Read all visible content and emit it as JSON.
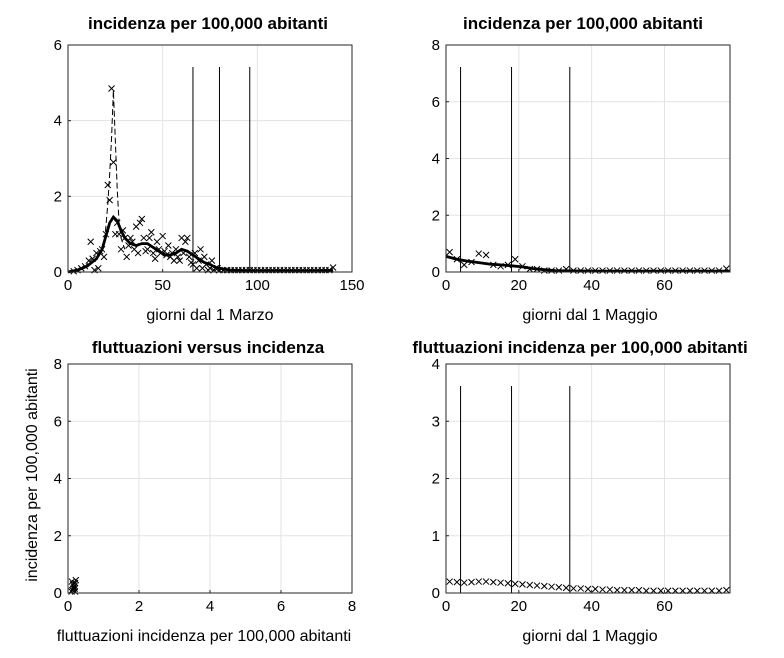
{
  "chart_data": [
    {
      "type": "line",
      "title": "incidenza per 100,000 abitanti",
      "xlabel": "giorni dal 1 Marzo",
      "ylabel": "",
      "xlim": [
        0,
        150
      ],
      "ylim": [
        0,
        6
      ],
      "xticks": [
        0,
        50,
        100,
        150
      ],
      "yticks": [
        0,
        2,
        4,
        6
      ],
      "grid": true,
      "vlines": [
        66,
        80,
        96
      ],
      "series": [
        {
          "style": "marker-x",
          "x": [
            3,
            5,
            7,
            9,
            11,
            12,
            13,
            14,
            15,
            16,
            17,
            18,
            19,
            20,
            21,
            22,
            23,
            24,
            25,
            26,
            27,
            28,
            29,
            30,
            31,
            32,
            33,
            34,
            35,
            36,
            37,
            38,
            39,
            40,
            41,
            42,
            43,
            44,
            45,
            46,
            47,
            48,
            49,
            50,
            51,
            52,
            53,
            54,
            55,
            56,
            57,
            58,
            59,
            60,
            61,
            62,
            63,
            64,
            65,
            66,
            67,
            68,
            69,
            70,
            71,
            72,
            73,
            74,
            75,
            76,
            77,
            78,
            79,
            80,
            82,
            84,
            86,
            88,
            90,
            92,
            94,
            96,
            98,
            100,
            102,
            104,
            106,
            108,
            110,
            112,
            114,
            116,
            118,
            120,
            122,
            124,
            126,
            128,
            130,
            132,
            134,
            136,
            138,
            140
          ],
          "y": [
            0.02,
            0.05,
            0.1,
            0.15,
            0.3,
            0.8,
            0.35,
            0.05,
            0.5,
            0.1,
            0.55,
            0.6,
            0.4,
            1.0,
            2.3,
            1.9,
            4.85,
            2.9,
            1.0,
            1.3,
            1.0,
            0.6,
            1.1,
            0.9,
            0.4,
            0.7,
            0.9,
            0.8,
            0.6,
            1.2,
            0.5,
            1.3,
            1.4,
            0.9,
            0.55,
            0.6,
            0.9,
            1.05,
            0.5,
            0.35,
            0.8,
            0.6,
            0.5,
            0.95,
            0.55,
            0.45,
            0.7,
            0.4,
            0.5,
            0.3,
            0.6,
            0.4,
            0.3,
            0.9,
            0.5,
            0.8,
            0.9,
            0.4,
            0.25,
            0.2,
            0.5,
            0.1,
            0.3,
            0.6,
            0.1,
            0.4,
            0.2,
            0.05,
            0.1,
            0.3,
            0.05,
            0.1,
            0.1,
            0.05,
            0.05,
            0.05,
            0.05,
            0.05,
            0.05,
            0.05,
            0.05,
            0.05,
            0.05,
            0.05,
            0.05,
            0.05,
            0.05,
            0.05,
            0.05,
            0.05,
            0.05,
            0.05,
            0.05,
            0.05,
            0.05,
            0.05,
            0.05,
            0.05,
            0.05,
            0.05,
            0.05,
            0.05,
            0.05,
            0.12
          ]
        },
        {
          "style": "dashed",
          "x": [
            18,
            19,
            20,
            21,
            22,
            23,
            24,
            25,
            26,
            27,
            28,
            30
          ],
          "y": [
            0.6,
            0.7,
            1.2,
            1.8,
            2.6,
            3.5,
            4.8,
            3.5,
            2.2,
            1.3,
            0.9,
            0.6
          ]
        },
        {
          "style": "thick",
          "x": [
            0,
            5,
            10,
            15,
            18,
            20,
            22,
            24,
            26,
            28,
            30,
            33,
            36,
            39,
            42,
            45,
            48,
            51,
            54,
            57,
            60,
            63,
            66,
            69,
            72,
            75,
            78,
            82,
            86,
            90,
            95,
            100,
            110,
            120,
            130,
            140
          ],
          "y": [
            0,
            0.05,
            0.15,
            0.35,
            0.6,
            0.95,
            1.3,
            1.45,
            1.35,
            1.1,
            0.9,
            0.75,
            0.7,
            0.75,
            0.75,
            0.65,
            0.55,
            0.45,
            0.45,
            0.5,
            0.6,
            0.55,
            0.45,
            0.35,
            0.25,
            0.2,
            0.12,
            0.08,
            0.05,
            0.04,
            0.03,
            0.03,
            0.03,
            0.03,
            0.03,
            0.04
          ]
        }
      ]
    },
    {
      "type": "line",
      "title": "incidenza per 100,000 abitanti",
      "xlabel": "giorni dal 1 Maggio",
      "ylabel": "",
      "xlim": [
        0,
        78
      ],
      "ylim": [
        0,
        8
      ],
      "xticks": [
        0,
        20,
        40,
        60
      ],
      "yticks": [
        0,
        2,
        4,
        6,
        8
      ],
      "grid": true,
      "vlines": [
        4,
        18,
        34
      ],
      "series": [
        {
          "style": "marker-x",
          "x": [
            1,
            3,
            5,
            7,
            9,
            11,
            13,
            15,
            17,
            19,
            21,
            23,
            25,
            27,
            29,
            31,
            33,
            35,
            37,
            39,
            41,
            43,
            45,
            47,
            49,
            51,
            53,
            55,
            57,
            59,
            61,
            63,
            65,
            67,
            69,
            71,
            73,
            75,
            77
          ],
          "y": [
            0.7,
            0.45,
            0.25,
            0.35,
            0.65,
            0.6,
            0.25,
            0.2,
            0.25,
            0.45,
            0.2,
            0.1,
            0.1,
            0.05,
            0.05,
            0.05,
            0.1,
            0.05,
            0.05,
            0.05,
            0.05,
            0.05,
            0.05,
            0.05,
            0.05,
            0.05,
            0.05,
            0.05,
            0.05,
            0.05,
            0.05,
            0.05,
            0.05,
            0.05,
            0.05,
            0.05,
            0.05,
            0.05,
            0.12
          ]
        },
        {
          "style": "thick",
          "x": [
            0,
            3,
            6,
            9,
            12,
            15,
            18,
            21,
            24,
            27,
            30,
            35,
            40,
            45,
            50,
            55,
            60,
            65,
            70,
            75,
            78
          ],
          "y": [
            0.55,
            0.45,
            0.38,
            0.33,
            0.28,
            0.25,
            0.22,
            0.18,
            0.12,
            0.08,
            0.05,
            0.04,
            0.03,
            0.03,
            0.03,
            0.03,
            0.03,
            0.03,
            0.03,
            0.03,
            0.03
          ]
        }
      ]
    },
    {
      "type": "scatter",
      "title": "fluttuazioni versus incidenza",
      "xlabel": "fluttuazioni incidenza per 100,000 abitanti",
      "ylabel": "incidenza per 100,000 abitanti",
      "xlim": [
        0,
        8
      ],
      "ylim": [
        0,
        8
      ],
      "xticks": [
        0,
        2,
        4,
        6,
        8
      ],
      "yticks": [
        0,
        2,
        4,
        6,
        8
      ],
      "grid": true,
      "series": [
        {
          "style": "marker-x",
          "x": [
            0.1,
            0.12,
            0.15,
            0.18,
            0.2,
            0.22,
            0.14,
            0.17,
            0.2,
            0.11,
            0.19
          ],
          "y": [
            0.05,
            0.1,
            0.15,
            0.25,
            0.35,
            0.45,
            0.3,
            0.2,
            0.05,
            0.4,
            0.15
          ]
        }
      ]
    },
    {
      "type": "line",
      "title": "fluttuazioni incidenza per 100,000 abitanti",
      "xlabel": "giorni dal 1 Maggio",
      "ylabel": "",
      "xlim": [
        0,
        78
      ],
      "ylim": [
        0,
        4
      ],
      "xticks": [
        0,
        20,
        40,
        60
      ],
      "yticks": [
        0,
        1,
        2,
        3,
        4
      ],
      "grid": true,
      "vlines": [
        4,
        18,
        34
      ],
      "series": [
        {
          "style": "marker-x",
          "x": [
            1,
            3,
            5,
            7,
            9,
            11,
            13,
            15,
            17,
            19,
            21,
            23,
            25,
            27,
            29,
            31,
            33,
            35,
            37,
            39,
            41,
            43,
            45,
            47,
            49,
            51,
            53,
            55,
            57,
            59,
            61,
            63,
            65,
            67,
            69,
            71,
            73,
            75,
            77
          ],
          "y": [
            0.2,
            0.19,
            0.18,
            0.19,
            0.2,
            0.2,
            0.19,
            0.18,
            0.17,
            0.16,
            0.15,
            0.14,
            0.13,
            0.12,
            0.11,
            0.1,
            0.09,
            0.08,
            0.08,
            0.07,
            0.07,
            0.06,
            0.06,
            0.05,
            0.05,
            0.05,
            0.05,
            0.04,
            0.04,
            0.04,
            0.04,
            0.04,
            0.04,
            0.04,
            0.04,
            0.04,
            0.04,
            0.04,
            0.05
          ]
        }
      ]
    }
  ]
}
